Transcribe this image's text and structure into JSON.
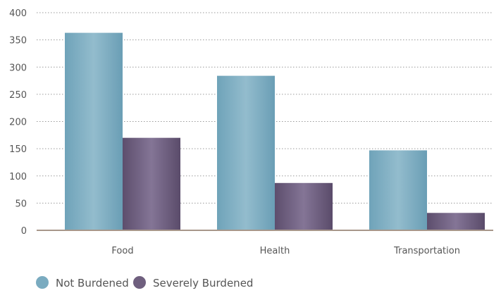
{
  "chart_data": {
    "type": "bar",
    "title": "",
    "xlabel": "",
    "ylabel": "",
    "categories": [
      "Food",
      "Health",
      "Transportation"
    ],
    "series": [
      {
        "name": "Not Burdened",
        "values": [
          363,
          284,
          147
        ],
        "color": "#7aabc0"
      },
      {
        "name": "Severely Burdened",
        "values": [
          170,
          87,
          32
        ],
        "color": "#6f5f7e"
      }
    ],
    "ylim": [
      0,
      400
    ],
    "yticks": [
      0,
      50,
      100,
      150,
      200,
      250,
      300,
      350,
      400
    ],
    "grid": true,
    "legend_position": "bottom-left"
  },
  "colors": {
    "not_burdened": "#7aabc0",
    "severely_burdened": "#6f5f7e",
    "baseline": "#a8978a",
    "gridline": "#9a9a9a",
    "text": "#555555"
  }
}
